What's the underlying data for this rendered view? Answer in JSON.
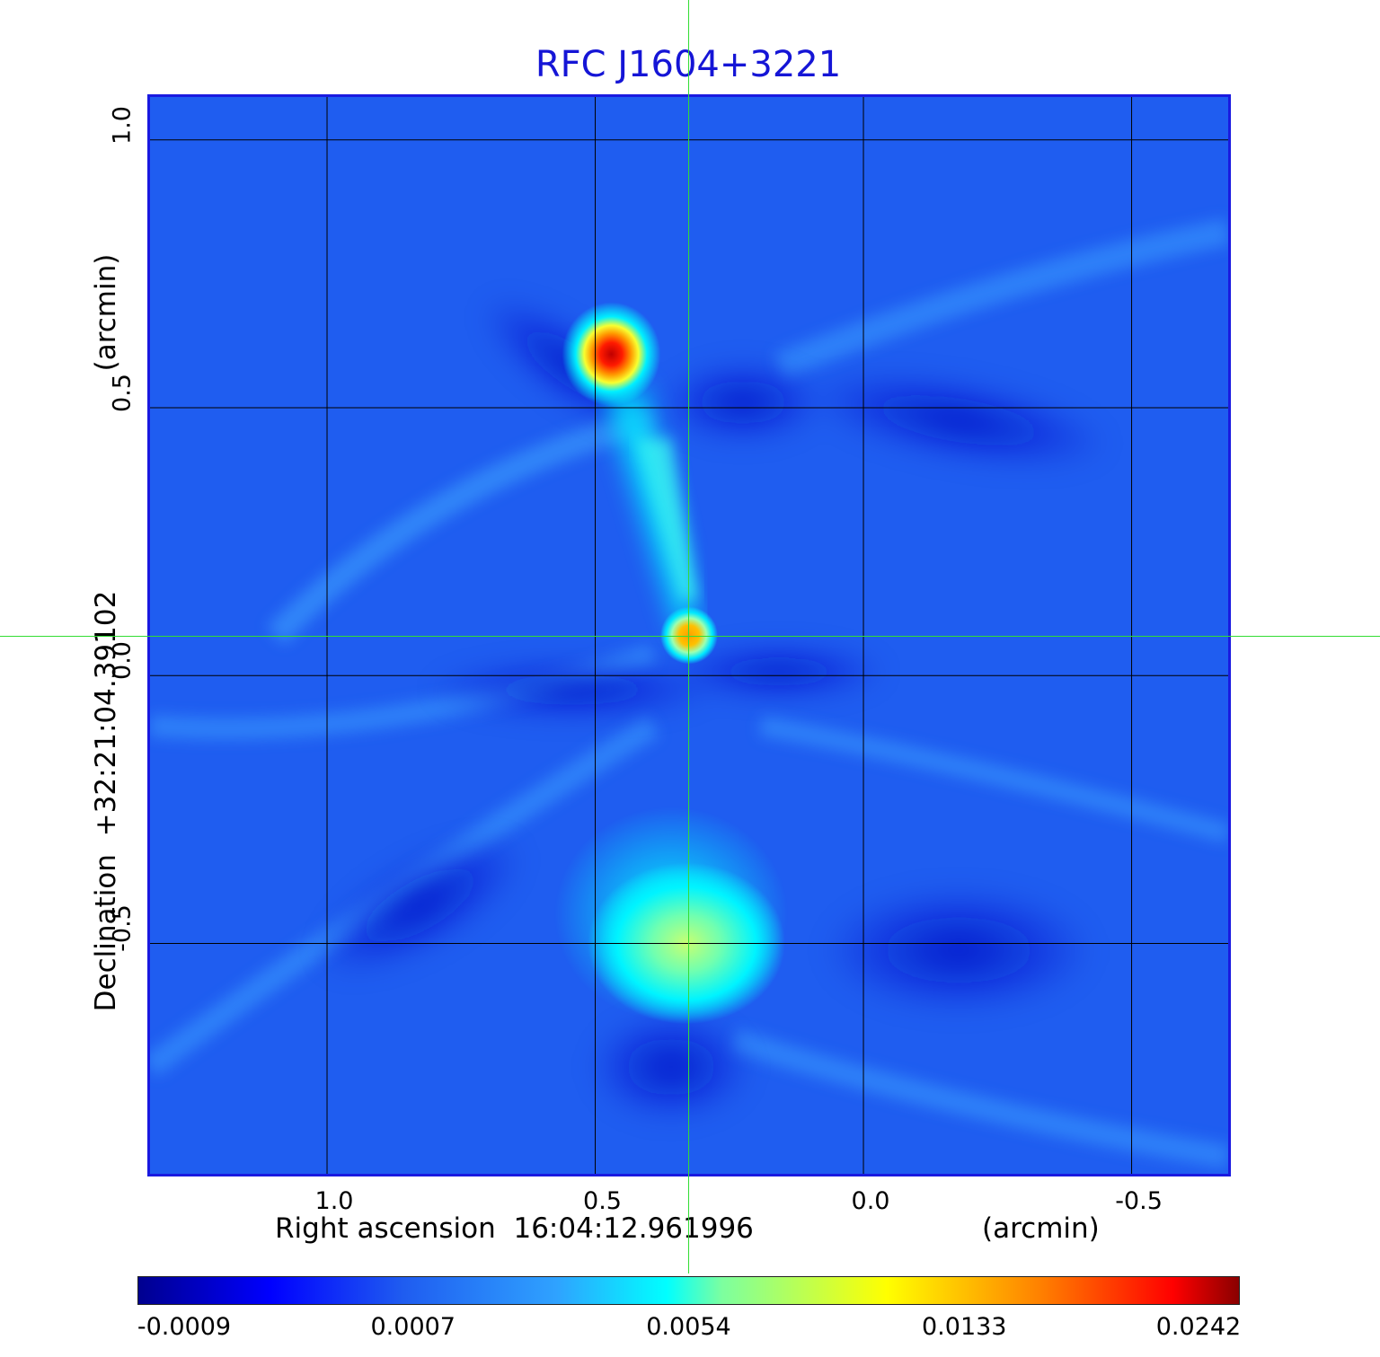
{
  "title": "RFC J1604+3221",
  "chart_data": {
    "type": "heatmap",
    "title": "RFC J1604+3221",
    "xlabel": "Right ascension  16:04:12.961996",
    "xunit": "(arcmin)",
    "ylabel": "Declination  +32:21:04.39102",
    "yunit": "(arcmin)",
    "x_ticks": [
      "1.0",
      "0.5",
      "0.0",
      "-0.5"
    ],
    "x_tick_values": [
      1.0,
      0.5,
      0.0,
      -0.5
    ],
    "y_ticks": [
      "1.0",
      "0.5",
      "0.0",
      "-0.5"
    ],
    "y_tick_values": [
      1.0,
      0.5,
      0.0,
      -0.5
    ],
    "xlim": [
      1.33,
      -0.68
    ],
    "ylim": [
      -0.93,
      1.08
    ],
    "grid": true,
    "crosshair": {
      "x": 0.325,
      "y": 0.075
    },
    "colormap": "jet",
    "colorbar": {
      "ticks": [
        "-0.0009",
        "0.0007",
        "0.0054",
        "0.0133",
        "0.0242"
      ],
      "min": -0.0009,
      "max": 0.0242
    },
    "features": [
      {
        "name": "hotspot-north",
        "x": 0.47,
        "y": 0.6,
        "level": 1.0
      },
      {
        "name": "core",
        "x": 0.325,
        "y": 0.075,
        "level": 0.75
      },
      {
        "name": "lobe-south",
        "x": 0.33,
        "y": -0.5,
        "level": 0.5
      }
    ]
  }
}
